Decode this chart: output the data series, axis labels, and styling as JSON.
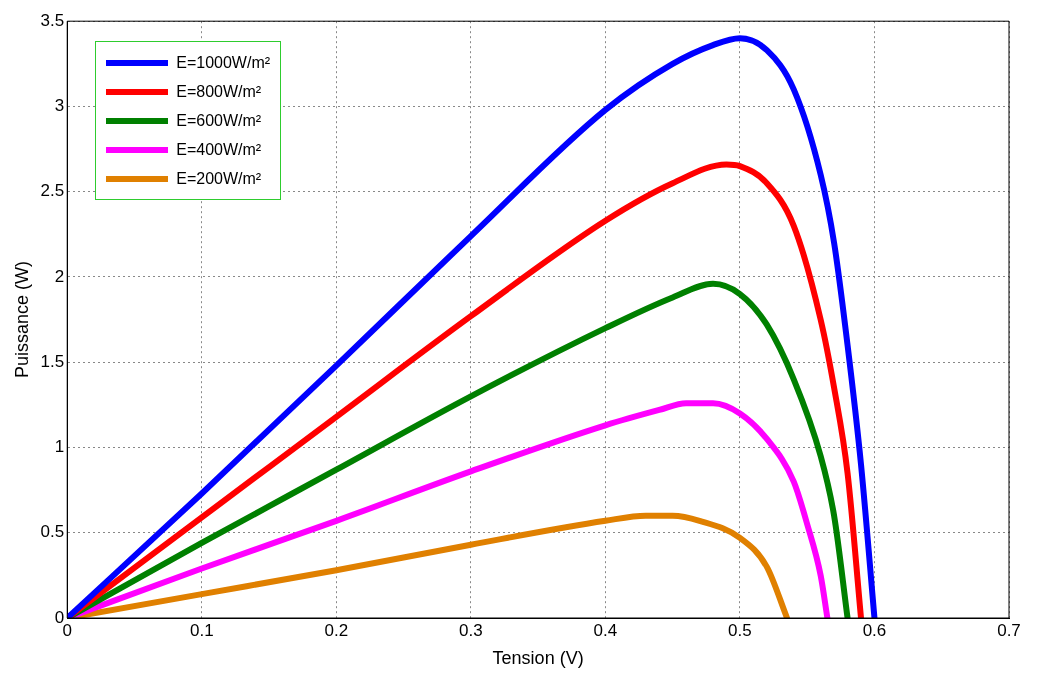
{
  "chart_data": {
    "type": "line",
    "xlabel": "Tension (V)",
    "ylabel": "Puissance (W)",
    "xlim": [
      0,
      0.7
    ],
    "ylim": [
      0,
      3.5
    ],
    "xticks": [
      0,
      0.1,
      0.2,
      0.3,
      0.4,
      0.5,
      0.6,
      0.7
    ],
    "yticks": [
      0,
      0.5,
      1,
      1.5,
      2,
      2.5,
      3,
      3.5
    ],
    "grid": true,
    "legend": "top left",
    "marker": "none",
    "line_style": "solid",
    "series": [
      {
        "name": "E=1000W/m²",
        "color": "#0000ff",
        "x": [
          0,
          0.1,
          0.2,
          0.3,
          0.4,
          0.45,
          0.48,
          0.5,
          0.52,
          0.54,
          0.56,
          0.57,
          0.58,
          0.59,
          0.6
        ],
        "values": [
          0,
          0.73,
          1.48,
          2.24,
          2.98,
          3.25,
          3.36,
          3.4,
          3.33,
          3.1,
          2.6,
          2.2,
          1.6,
          0.9,
          0
        ]
      },
      {
        "name": "E=800W/m²",
        "color": "#ff0000",
        "x": [
          0,
          0.1,
          0.2,
          0.3,
          0.4,
          0.45,
          0.49,
          0.5,
          0.52,
          0.54,
          0.56,
          0.57,
          0.58,
          0.59
        ],
        "values": [
          0,
          0.59,
          1.18,
          1.77,
          2.33,
          2.55,
          2.66,
          2.65,
          2.55,
          2.3,
          1.75,
          1.35,
          0.85,
          0
        ]
      },
      {
        "name": "E=600W/m²",
        "color": "#008000",
        "x": [
          0,
          0.1,
          0.2,
          0.3,
          0.4,
          0.45,
          0.48,
          0.5,
          0.52,
          0.54,
          0.56,
          0.57,
          0.58
        ],
        "values": [
          0,
          0.44,
          0.87,
          1.3,
          1.7,
          1.88,
          1.96,
          1.9,
          1.72,
          1.4,
          0.95,
          0.6,
          0
        ]
      },
      {
        "name": "E=400W/m²",
        "color": "#ff00ff",
        "x": [
          0,
          0.1,
          0.2,
          0.3,
          0.4,
          0.44,
          0.46,
          0.48,
          0.5,
          0.52,
          0.54,
          0.55,
          0.56,
          0.565
        ],
        "values": [
          0,
          0.29,
          0.57,
          0.86,
          1.13,
          1.22,
          1.26,
          1.26,
          1.2,
          1.05,
          0.8,
          0.55,
          0.25,
          0
        ]
      },
      {
        "name": "E=200W/m²",
        "color": "#e08000",
        "x": [
          0,
          0.1,
          0.2,
          0.3,
          0.4,
          0.43,
          0.45,
          0.47,
          0.5,
          0.52,
          0.535
        ],
        "values": [
          0,
          0.14,
          0.28,
          0.43,
          0.57,
          0.6,
          0.6,
          0.57,
          0.47,
          0.3,
          0
        ]
      }
    ]
  }
}
